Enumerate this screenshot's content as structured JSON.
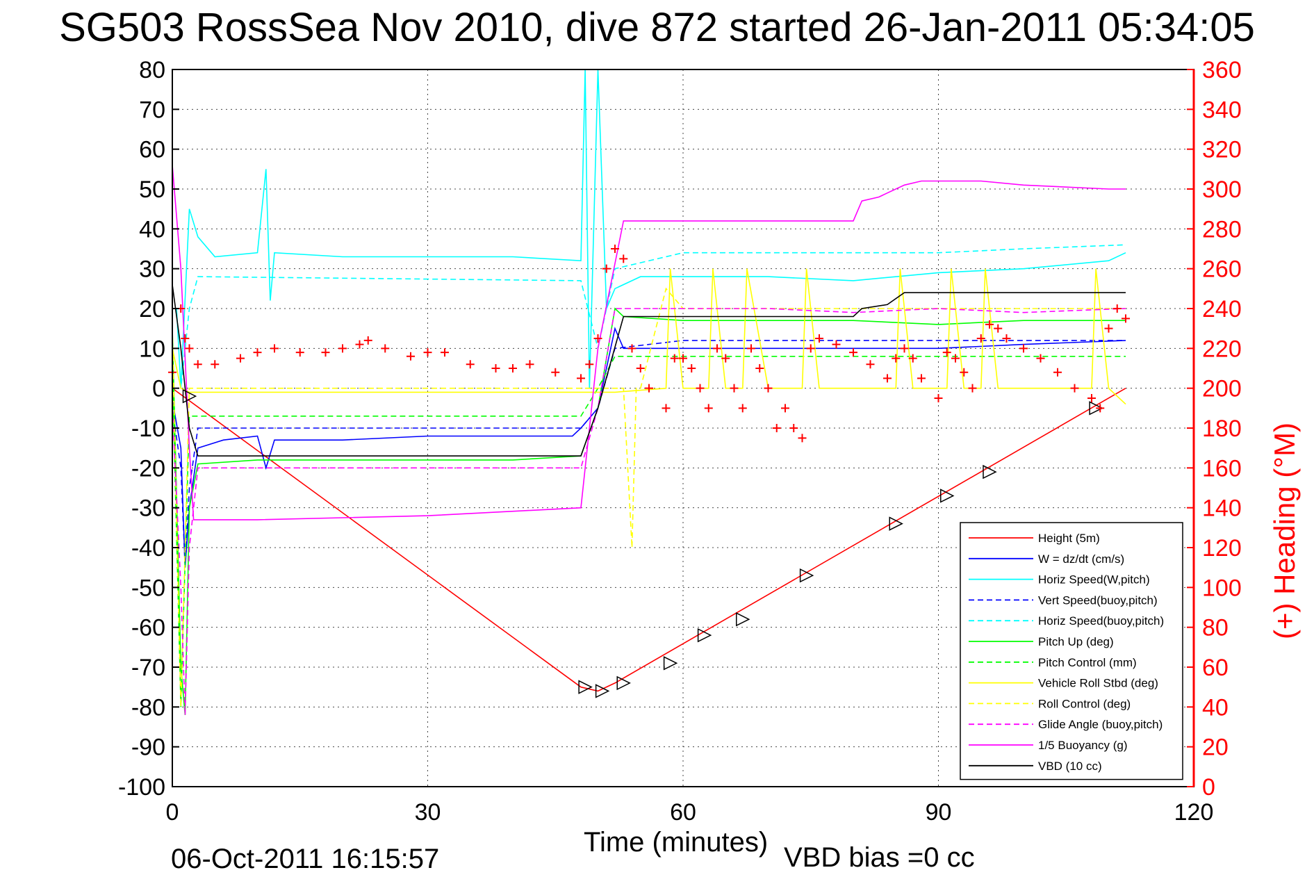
{
  "chart_data": {
    "type": "line",
    "title": "SG503 RossSea Nov 2010, dive 872 started 26-Jan-2011 05:34:05",
    "xlabel": "Time (minutes)",
    "ylabel": "",
    "y2label": "(+) Heading (°M)",
    "xlim": [
      0,
      120
    ],
    "ylim": [
      -100,
      80
    ],
    "y2lim": [
      0,
      360
    ],
    "xticks": [
      0,
      30,
      60,
      90,
      120
    ],
    "yticks": [
      80,
      70,
      60,
      50,
      40,
      30,
      20,
      10,
      0,
      -10,
      -20,
      -30,
      -40,
      -50,
      -60,
      -70,
      -80,
      -90,
      -100
    ],
    "y2ticks": [
      360,
      340,
      320,
      300,
      280,
      260,
      240,
      220,
      200,
      180,
      160,
      140,
      120,
      100,
      80,
      60,
      40,
      20,
      0
    ],
    "grid": true,
    "legend_position": "bottom-right",
    "annotations": {
      "vbd_bias": "VBD bias =0 cc",
      "plot_date": "06-Oct-2011 16:15:57"
    },
    "series": [
      {
        "name": "Height (5m)",
        "color": "#ff0000",
        "style": "solid",
        "x": [
          0,
          48,
          50,
          52,
          112
        ],
        "y": [
          0,
          -75,
          -76,
          -74,
          0
        ]
      },
      {
        "name": "W = dz/dt (cm/s)",
        "color": "#0000ff",
        "style": "solid",
        "x": [
          0,
          1,
          1.5,
          2,
          3,
          6,
          10,
          11,
          12,
          20,
          30,
          40,
          47,
          48,
          50,
          52,
          53,
          60,
          70,
          80,
          90,
          100,
          112
        ],
        "y": [
          -3,
          -15,
          -45,
          -30,
          -15,
          -13,
          -12,
          -20,
          -13,
          -13,
          -12,
          -12,
          -12,
          -10,
          -5,
          15,
          10,
          10,
          10,
          10,
          10,
          11,
          12
        ]
      },
      {
        "name": "Horiz Speed(W,pitch)",
        "color": "#00ffff",
        "style": "solid",
        "x": [
          0.5,
          1,
          2,
          3,
          5,
          10,
          11,
          11.5,
          12,
          20,
          30,
          40,
          48,
          48.5,
          49,
          50,
          51,
          52,
          55,
          60,
          70,
          80,
          90,
          100,
          110,
          112
        ],
        "y": [
          20,
          0,
          45,
          38,
          33,
          34,
          55,
          22,
          34,
          33,
          33,
          33,
          32,
          80,
          0,
          80,
          20,
          25,
          28,
          28,
          28,
          27,
          29,
          30,
          32,
          34
        ]
      },
      {
        "name": "Vert Speed(buoy,pitch)",
        "color": "#0000ff",
        "style": "dashed",
        "x": [
          0,
          1,
          1.5,
          2,
          3,
          48,
          50,
          52,
          60,
          70,
          80,
          90,
          100,
          112
        ],
        "y": [
          -5,
          -20,
          -45,
          -25,
          -10,
          -10,
          -5,
          10,
          12,
          12,
          12,
          12,
          12,
          12
        ]
      },
      {
        "name": "Horiz Speed(buoy,pitch)",
        "color": "#00ffff",
        "style": "dashed",
        "x": [
          0,
          1,
          2,
          3,
          48,
          50,
          52,
          60,
          70,
          80,
          90,
          100,
          112
        ],
        "y": [
          10,
          0,
          20,
          28,
          27,
          10,
          30,
          34,
          34,
          34,
          34,
          35,
          36
        ]
      },
      {
        "name": "Pitch Up (deg)",
        "color": "#00ff00",
        "style": "solid",
        "x": [
          0,
          1,
          1.5,
          2,
          3,
          10,
          20,
          30,
          40,
          48,
          50,
          52,
          53,
          60,
          70,
          80,
          90,
          100,
          112
        ],
        "y": [
          15,
          -70,
          -82,
          -30,
          -19,
          -18,
          -18,
          -18,
          -18,
          -17,
          -5,
          20,
          18,
          17,
          17,
          17,
          16,
          17,
          17
        ]
      },
      {
        "name": "Pitch Control (mm)",
        "color": "#00ff00",
        "style": "dashed",
        "x": [
          0,
          1,
          2,
          48,
          50,
          52,
          112
        ],
        "y": [
          5,
          -80,
          -7,
          -7,
          0,
          8,
          8
        ]
      },
      {
        "name": "Vehicle Roll Stbd (deg)",
        "color": "#ffff00",
        "style": "solid",
        "x": [
          0,
          1,
          2,
          3,
          48,
          50,
          52,
          58,
          58.5,
          60,
          63,
          63.5,
          65,
          67,
          67.5,
          70,
          74,
          74.5,
          76,
          85,
          85.5,
          87,
          91,
          91.5,
          93,
          95,
          95.5,
          97,
          108,
          108.5,
          110,
          112
        ],
        "y": [
          10,
          0,
          -1,
          -1,
          -1,
          -1,
          -1,
          0,
          30,
          0,
          0,
          30,
          0,
          0,
          30,
          0,
          0,
          30,
          0,
          0,
          30,
          0,
          0,
          30,
          0,
          0,
          30,
          0,
          0,
          30,
          0,
          -4
        ]
      },
      {
        "name": "Roll Control (deg)",
        "color": "#ffff00",
        "style": "dashed",
        "x": [
          0,
          1,
          2,
          48,
          50,
          53,
          54,
          54.5,
          55,
          58,
          60,
          90,
          112
        ],
        "y": [
          15,
          -80,
          0,
          0,
          0,
          0,
          -40,
          0,
          0,
          25,
          20,
          20,
          20
        ]
      },
      {
        "name": "Glide Angle (buoy,pitch)",
        "color": "#ff00ff",
        "style": "dashed",
        "x": [
          0,
          1,
          1.5,
          2,
          3,
          10,
          48,
          50,
          52,
          60,
          70,
          80,
          90,
          100,
          112
        ],
        "y": [
          -5,
          -50,
          -82,
          -40,
          -20,
          -20,
          -20,
          -5,
          20,
          20,
          20,
          19,
          20,
          19,
          20
        ]
      },
      {
        "name": "1/5 Buoyancy (g)",
        "color": "#ff00ff",
        "style": "solid",
        "x": [
          0,
          1,
          2,
          2.5,
          10,
          30,
          48,
          50,
          53,
          60,
          70,
          80,
          81,
          83,
          84,
          86,
          88,
          95,
          100,
          110,
          112
        ],
        "y": [
          56,
          30,
          -15,
          -33,
          -33,
          -32,
          -30,
          10,
          42,
          42,
          42,
          42,
          47,
          48,
          49,
          51,
          52,
          52,
          51,
          50,
          50
        ]
      },
      {
        "name": "VBD (10 cc)",
        "color": "#000000",
        "style": "solid",
        "x": [
          0,
          1,
          2,
          3,
          10,
          30,
          48,
          50,
          53,
          60,
          70,
          80,
          81,
          84,
          86,
          90,
          100,
          112
        ],
        "y": [
          26,
          10,
          -10,
          -17,
          -17,
          -17,
          -17,
          -5,
          18,
          18,
          18,
          18,
          20,
          21,
          24,
          24,
          24,
          24
        ]
      },
      {
        "name": "Height (5m) markers",
        "color": "#000000",
        "style": "markers-triangle",
        "x": [
          2,
          48.5,
          50.5,
          53,
          58.5,
          62.5,
          67,
          74.5,
          85,
          91,
          96,
          108.5
        ],
        "y": [
          -2,
          -75,
          -76,
          -74,
          -69,
          -62,
          -58,
          -47,
          -34,
          -27,
          -21,
          -5
        ]
      },
      {
        "name": "Heading",
        "color": "#ff0000",
        "style": "markers-plus",
        "axis": "right",
        "x": [
          0,
          1,
          1.5,
          2,
          3,
          5,
          8,
          10,
          12,
          15,
          18,
          20,
          22,
          23,
          25,
          28,
          30,
          32,
          35,
          38,
          40,
          42,
          45,
          48,
          49,
          50,
          51,
          52,
          53,
          54,
          55,
          56,
          58,
          59,
          60,
          61,
          62,
          63,
          64,
          65,
          66,
          67,
          68,
          69,
          70,
          71,
          72,
          73,
          74,
          75,
          76,
          78,
          80,
          82,
          84,
          85,
          86,
          87,
          88,
          90,
          91,
          92,
          93,
          94,
          95,
          96,
          97,
          98,
          100,
          102,
          104,
          106,
          108,
          109,
          110,
          111,
          112
        ],
        "y": [
          208,
          240,
          225,
          220,
          212,
          212,
          215,
          218,
          220,
          218,
          218,
          220,
          222,
          224,
          220,
          216,
          218,
          218,
          212,
          210,
          210,
          212,
          208,
          205,
          212,
          225,
          260,
          270,
          265,
          220,
          210,
          200,
          190,
          215,
          215,
          210,
          200,
          190,
          220,
          215,
          200,
          190,
          220,
          210,
          200,
          180,
          190,
          180,
          175,
          220,
          225,
          222,
          218,
          212,
          205,
          215,
          220,
          215,
          205,
          195,
          218,
          215,
          208,
          200,
          225,
          232,
          230,
          225,
          220,
          215,
          208,
          200,
          195,
          190,
          230,
          240,
          235
        ]
      }
    ]
  }
}
